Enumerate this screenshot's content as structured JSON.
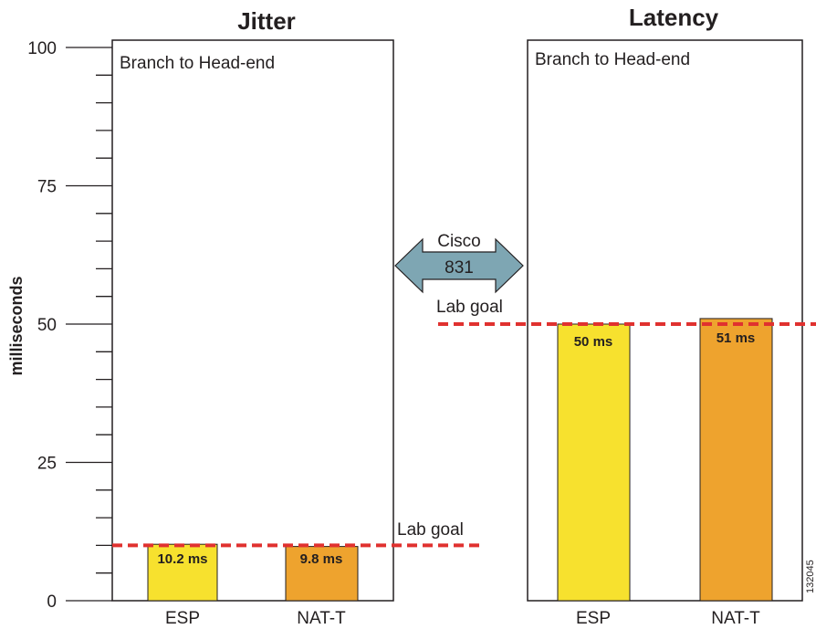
{
  "chart_data": [
    {
      "type": "bar",
      "title": "Jitter",
      "subtitle": "Branch to Head-end",
      "ylabel": "milliseconds",
      "ylim": [
        0,
        100
      ],
      "yticks": [
        "0",
        "25",
        "50",
        "75",
        "100"
      ],
      "categories": [
        "ESP",
        "NAT-T"
      ],
      "values": [
        10.2,
        9.8
      ],
      "data_labels": [
        "10.2 ms",
        "9.8 ms"
      ],
      "colors": [
        "#f7e12e",
        "#eea32e"
      ],
      "goal": {
        "label": "Lab goal",
        "value": 10,
        "color": "#e0312f"
      }
    },
    {
      "type": "bar",
      "title": "Latency",
      "subtitle": "Branch to Head-end",
      "ylim": [
        0,
        100
      ],
      "categories": [
        "ESP",
        "NAT-T"
      ],
      "values": [
        50,
        51
      ],
      "data_labels": [
        "50 ms",
        "51 ms"
      ],
      "colors": [
        "#f7e12e",
        "#eea32e"
      ],
      "goal": {
        "label": "Lab goal",
        "value": 50,
        "color": "#e0312f"
      }
    }
  ],
  "device_arrow": {
    "line1": "Cisco",
    "line2": "831",
    "color": "#7ea6b3"
  },
  "figure_id": "132045"
}
